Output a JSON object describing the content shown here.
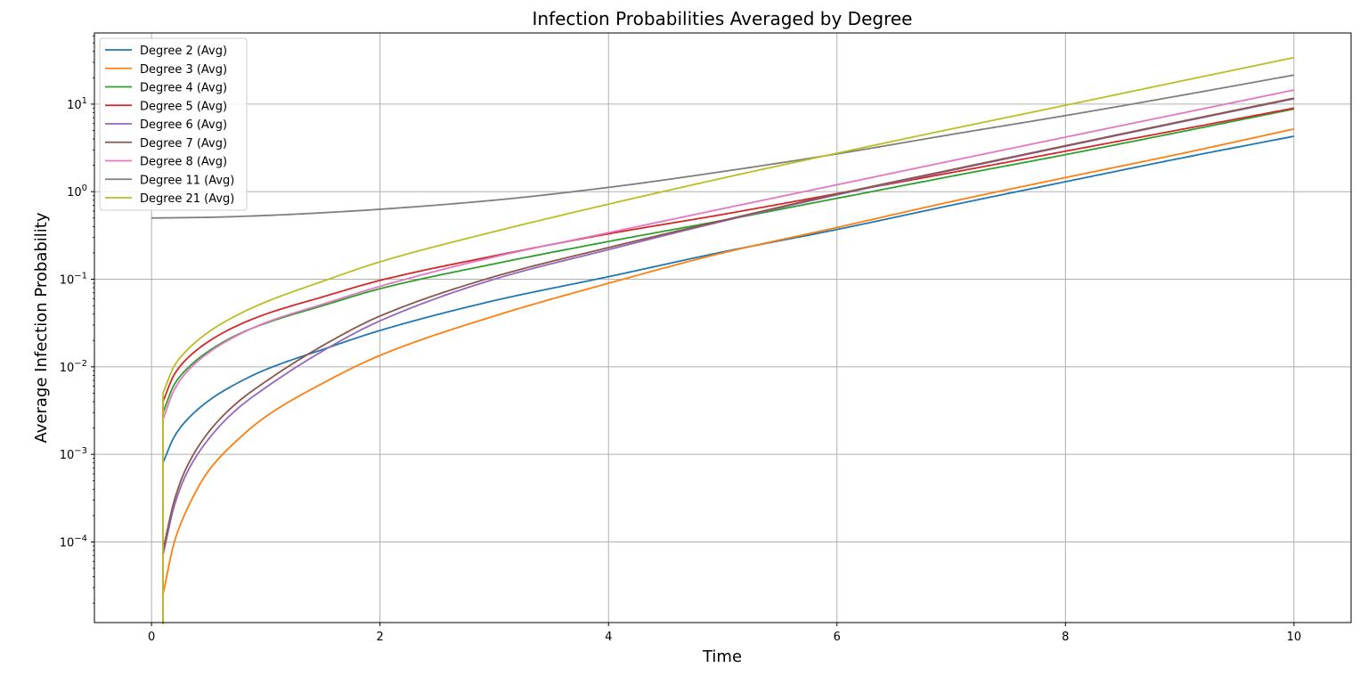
{
  "chart_data": {
    "type": "line",
    "title": "Infection Probabilities Averaged by Degree",
    "xlabel": "Time",
    "ylabel": "Average Infection Probability",
    "xlim": [
      -0.5,
      10.5
    ],
    "ylim": [
      1.2e-05,
      65
    ],
    "yscale": "log",
    "grid": true,
    "legend_position": "upper-left",
    "x_ticks": [
      0,
      2,
      4,
      6,
      8,
      10
    ],
    "x_tick_labels": [
      "0",
      "2",
      "4",
      "6",
      "8",
      "10"
    ],
    "y_ticks": [
      {
        "value": 0.0001,
        "base": "10",
        "exp": "−4"
      },
      {
        "value": 0.001,
        "base": "10",
        "exp": "−3"
      },
      {
        "value": 0.01,
        "base": "10",
        "exp": "−2"
      },
      {
        "value": 0.1,
        "base": "10",
        "exp": "−1"
      },
      {
        "value": 1,
        "base": "10",
        "exp": "0"
      },
      {
        "value": 10,
        "base": "10",
        "exp": "1"
      }
    ],
    "series": [
      {
        "name": "Degree 2 (Avg)",
        "color": "#1f77b4",
        "points": [
          [
            0.1,
            0.0008
          ],
          [
            0.2,
            0.0016
          ],
          [
            0.3,
            0.0024
          ],
          [
            0.5,
            0.0041
          ],
          [
            0.75,
            0.0065
          ],
          [
            1,
            0.0093
          ],
          [
            1.5,
            0.0158
          ],
          [
            2,
            0.026
          ],
          [
            3,
            0.057
          ],
          [
            4,
            0.107
          ],
          [
            5,
            0.205
          ],
          [
            6,
            0.37
          ],
          [
            7,
            0.7
          ],
          [
            8,
            1.3
          ],
          [
            9,
            2.4
          ],
          [
            10,
            4.3
          ]
        ]
      },
      {
        "name": "Degree 3 (Avg)",
        "color": "#ff7f0e",
        "points": [
          [
            0.1,
            0.0
          ],
          [
            0.1,
            2.5e-05
          ],
          [
            0.2,
            0.0001
          ],
          [
            0.3,
            0.00022
          ],
          [
            0.5,
            0.00065
          ],
          [
            0.75,
            0.00145
          ],
          [
            1,
            0.0027
          ],
          [
            1.5,
            0.0065
          ],
          [
            2,
            0.0135
          ],
          [
            3,
            0.038
          ],
          [
            4,
            0.09
          ],
          [
            5,
            0.2
          ],
          [
            6,
            0.39
          ],
          [
            7,
            0.77
          ],
          [
            8,
            1.45
          ],
          [
            9,
            2.7
          ],
          [
            10,
            5.2
          ]
        ]
      },
      {
        "name": "Degree 4 (Avg)",
        "color": "#2ca02c",
        "points": [
          [
            0.1,
            0.0
          ],
          [
            0.1,
            0.003
          ],
          [
            0.2,
            0.0063
          ],
          [
            0.3,
            0.0092
          ],
          [
            0.5,
            0.0151
          ],
          [
            0.75,
            0.0232
          ],
          [
            1,
            0.0315
          ],
          [
            1.5,
            0.05
          ],
          [
            2,
            0.078
          ],
          [
            3,
            0.15
          ],
          [
            4,
            0.27
          ],
          [
            5,
            0.47
          ],
          [
            6,
            0.84
          ],
          [
            7,
            1.5
          ],
          [
            8,
            2.65
          ],
          [
            9,
            4.8
          ],
          [
            10,
            8.8
          ]
        ]
      },
      {
        "name": "Degree 5 (Avg)",
        "color": "#d62728",
        "points": [
          [
            0.1,
            0.0
          ],
          [
            0.1,
            0.004
          ],
          [
            0.2,
            0.0082
          ],
          [
            0.3,
            0.012
          ],
          [
            0.5,
            0.0195
          ],
          [
            0.75,
            0.0295
          ],
          [
            1,
            0.04
          ],
          [
            1.5,
            0.063
          ],
          [
            2,
            0.097
          ],
          [
            3,
            0.185
          ],
          [
            4,
            0.33
          ],
          [
            5,
            0.55
          ],
          [
            6,
            0.95
          ],
          [
            7,
            1.65
          ],
          [
            8,
            2.9
          ],
          [
            9,
            5.1
          ],
          [
            10,
            9.0
          ]
        ]
      },
      {
        "name": "Degree 6 (Avg)",
        "color": "#9467bd",
        "points": [
          [
            0.1,
            0.0
          ],
          [
            0.1,
            7e-05
          ],
          [
            0.2,
            0.00026
          ],
          [
            0.3,
            0.00058
          ],
          [
            0.5,
            0.0015
          ],
          [
            0.75,
            0.0033
          ],
          [
            1,
            0.0058
          ],
          [
            1.5,
            0.0152
          ],
          [
            2,
            0.0335
          ],
          [
            3,
            0.1
          ],
          [
            4,
            0.218
          ],
          [
            5,
            0.46
          ],
          [
            6,
            0.92
          ],
          [
            7,
            1.75
          ],
          [
            8,
            3.3
          ],
          [
            9,
            6.2
          ],
          [
            10,
            11.5
          ]
        ]
      },
      {
        "name": "Degree 7 (Avg)",
        "color": "#8c564b",
        "points": [
          [
            0.1,
            0.0
          ],
          [
            0.1,
            8e-05
          ],
          [
            0.2,
            0.0003
          ],
          [
            0.3,
            0.00068
          ],
          [
            0.5,
            0.0018
          ],
          [
            0.75,
            0.0039
          ],
          [
            1,
            0.0068
          ],
          [
            1.5,
            0.0175
          ],
          [
            2,
            0.038
          ],
          [
            3,
            0.107
          ],
          [
            4,
            0.23
          ],
          [
            5,
            0.47
          ],
          [
            6,
            0.94
          ],
          [
            7,
            1.78
          ],
          [
            8,
            3.35
          ],
          [
            9,
            6.3
          ],
          [
            10,
            11.7
          ]
        ]
      },
      {
        "name": "Degree 8 (Avg)",
        "color": "#e377c2",
        "points": [
          [
            0.1,
            0.0
          ],
          [
            0.1,
            0.0025
          ],
          [
            0.2,
            0.0055
          ],
          [
            0.3,
            0.0085
          ],
          [
            0.5,
            0.0145
          ],
          [
            0.75,
            0.0228
          ],
          [
            1,
            0.032
          ],
          [
            1.5,
            0.052
          ],
          [
            2,
            0.083
          ],
          [
            3,
            0.18
          ],
          [
            4,
            0.34
          ],
          [
            5,
            0.64
          ],
          [
            6,
            1.2
          ],
          [
            7,
            2.25
          ],
          [
            8,
            4.2
          ],
          [
            9,
            7.8
          ],
          [
            10,
            14.5
          ]
        ]
      },
      {
        "name": "Degree 11 (Avg)",
        "color": "#7f7f7f",
        "points": [
          [
            0.0,
            0.5
          ],
          [
            0.5,
            0.51
          ],
          [
            1,
            0.535
          ],
          [
            1.5,
            0.575
          ],
          [
            2,
            0.63
          ],
          [
            3,
            0.8
          ],
          [
            4,
            1.12
          ],
          [
            5,
            1.7
          ],
          [
            6,
            2.7
          ],
          [
            7,
            4.5
          ],
          [
            8,
            7.4
          ],
          [
            9,
            12.5
          ],
          [
            10,
            21.5
          ]
        ]
      },
      {
        "name": "Degree 21 (Avg)",
        "color": "#bcbd22",
        "points": [
          [
            0.1,
            0.0
          ],
          [
            0.1,
            0.005
          ],
          [
            0.2,
            0.0103
          ],
          [
            0.3,
            0.015
          ],
          [
            0.5,
            0.025
          ],
          [
            0.75,
            0.039
          ],
          [
            1,
            0.055
          ],
          [
            1.5,
            0.095
          ],
          [
            2,
            0.158
          ],
          [
            3,
            0.35
          ],
          [
            4,
            0.72
          ],
          [
            5,
            1.43
          ],
          [
            6,
            2.75
          ],
          [
            7,
            5.2
          ],
          [
            8,
            9.7
          ],
          [
            9,
            18.2
          ],
          [
            10,
            34
          ]
        ]
      }
    ]
  }
}
